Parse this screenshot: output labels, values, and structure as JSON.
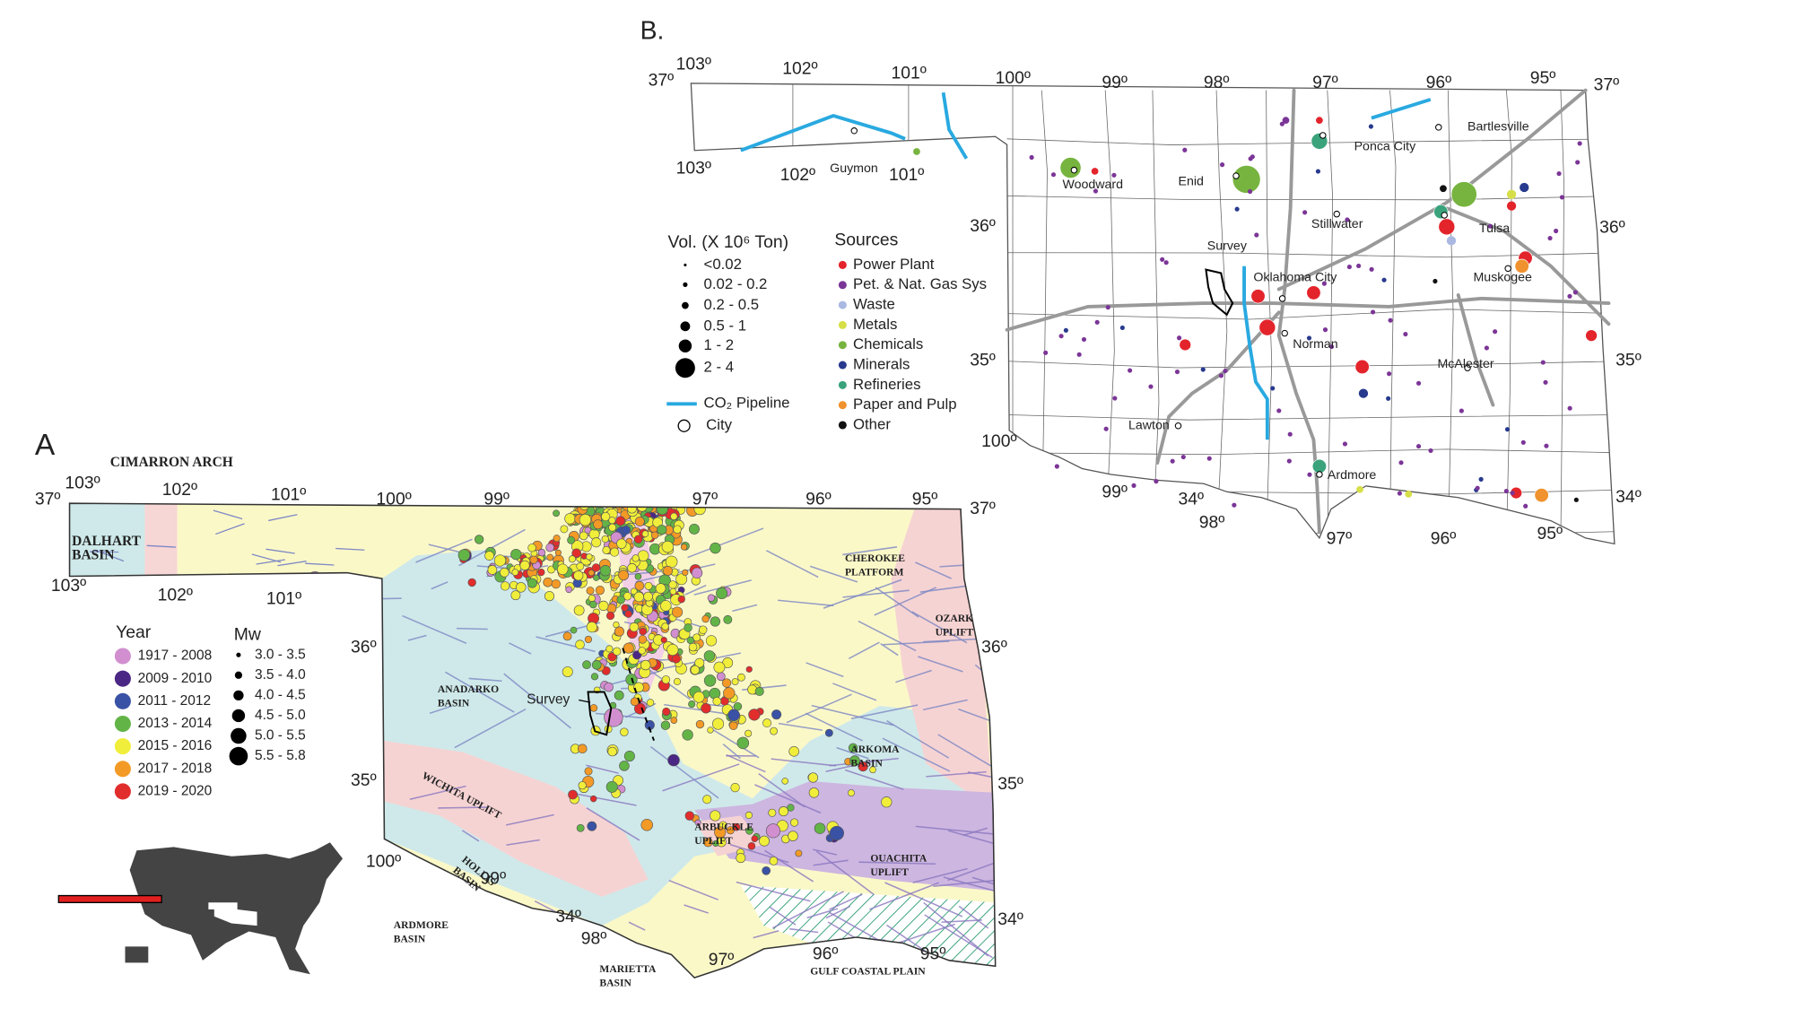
{
  "panel_a": {
    "label": "A",
    "regions": [
      [
        "CIMARRON ARCH"
      ],
      [
        "DALHART",
        "BASIN"
      ],
      [
        "CHEROKEE",
        "PLATFORM"
      ],
      [
        "OZARK",
        "UPLIFT"
      ],
      [
        "ANADARKO",
        "BASIN"
      ],
      [
        "ARKOMA",
        "BASIN"
      ],
      [
        "WICHITA UPLIFT"
      ],
      [
        "ARBUCKLE",
        "UPLIFT"
      ],
      [
        "OUACHITA",
        "UPLIFT"
      ],
      [
        "HOLLIS",
        "BASIN"
      ],
      [
        "ARDMORE",
        "BASIN"
      ],
      [
        "MARIETTA",
        "BASIN"
      ],
      [
        "GULF COASTAL PLAIN"
      ]
    ],
    "degree_labels": [
      "37º",
      "103º",
      "102º",
      "101º",
      "100º",
      "99º",
      "97º",
      "96º",
      "95º",
      "37º",
      "103º",
      "102º",
      "101º",
      "36º",
      "35º",
      "100º",
      "99º",
      "34º",
      "98º",
      "97º",
      "96º",
      "95º",
      "36º",
      "35º",
      "34º"
    ],
    "survey": "Survey",
    "year_legend": {
      "title": "Year",
      "items": [
        {
          "label": "1917 - 2008",
          "color": "#d28fd0"
        },
        {
          "label": "2009 - 2010",
          "color": "#4b2785"
        },
        {
          "label": "2011 - 2012",
          "color": "#3a52a5"
        },
        {
          "label": "2013 - 2014",
          "color": "#63b447"
        },
        {
          "label": "2015 - 2016",
          "color": "#f1ee3b"
        },
        {
          "label": "2017 - 2018",
          "color": "#f39a26"
        },
        {
          "label": "2019 - 2020",
          "color": "#e22d2d"
        }
      ]
    },
    "mw_legend": {
      "title": "Mw",
      "items": [
        "3.0 - 3.5",
        "3.5 - 4.0",
        "4.0 - 4.5",
        "4.5 - 5.0",
        "5.0 - 5.5",
        "5.5 - 5.8"
      ]
    }
  },
  "panel_b": {
    "label": "B.",
    "degree_labels": [
      "37º",
      "103º",
      "102º",
      "101º",
      "100º",
      "99º",
      "98º",
      "97º",
      "96º",
      "95º",
      "37º",
      "103º",
      "102º",
      "101º",
      "36º",
      "35º",
      "100º",
      "99º",
      "34º",
      "98º",
      "97º",
      "96º",
      "95º",
      "36º",
      "35º",
      "34º"
    ],
    "cities": [
      "Guymon",
      "Woodward",
      "Enid",
      "Ponca City",
      "Bartlesville",
      "Stillwater",
      "Tulsa",
      "Oklahoma City",
      "Norman",
      "Muskogee",
      "McAlester",
      "Lawton",
      "Ardmore"
    ],
    "survey": "Survey",
    "volume_legend": {
      "title": "Vol. (X 10⁶ Ton)",
      "items": [
        "<0.02",
        "0.02 - 0.2",
        "0.2 - 0.5",
        "0.5 - 1",
        "1 - 2",
        "2 - 4"
      ]
    },
    "sources_legend": {
      "title": "Sources",
      "items": [
        {
          "label": "Power Plant",
          "color": "#e3242b"
        },
        {
          "label": "Pet. & Nat. Gas Sys",
          "color": "#7b3597"
        },
        {
          "label": "Waste",
          "color": "#aab8e2"
        },
        {
          "label": "Metals",
          "color": "#d6df47"
        },
        {
          "label": "Chemicals",
          "color": "#77b43f"
        },
        {
          "label": "Minerals",
          "color": "#283a8e"
        },
        {
          "label": "Refineries",
          "color": "#3aa37c"
        },
        {
          "label": "Paper and Pulp",
          "color": "#f0922d"
        },
        {
          "label": "Other",
          "color": "#111111"
        }
      ]
    },
    "pipeline_label": "CO₂ Pipeline",
    "city_label": "City"
  }
}
